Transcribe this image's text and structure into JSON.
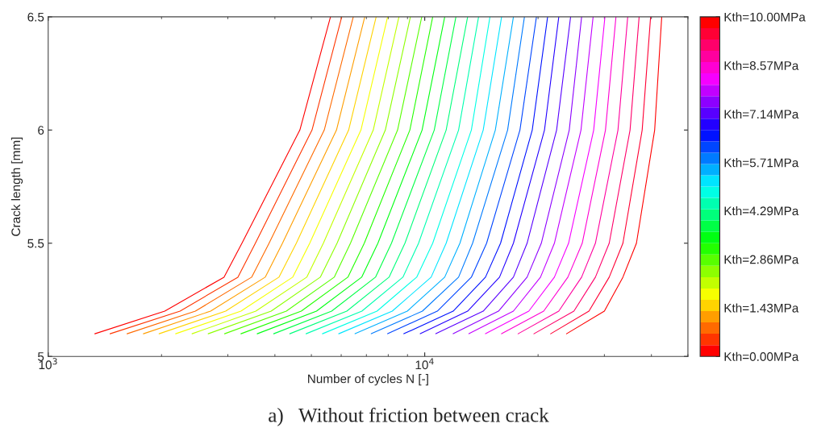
{
  "chart_data": {
    "type": "line",
    "xlabel": "Number of cycles N [-]",
    "ylabel": "Crack length [mm]",
    "log": "x",
    "xlim": [
      1000,
      50000
    ],
    "xticks": [
      {
        "value": 1000,
        "label": "10$^{3}$"
      },
      {
        "value": 10000,
        "label": "10$^{4}$"
      }
    ],
    "ylim": [
      5,
      6.5
    ],
    "yticks": [
      5,
      5.5,
      6,
      6.5
    ],
    "grid": false,
    "legend": false,
    "marker": "none",
    "line_style": "solid",
    "clim": [
      0,
      10
    ],
    "cticks": [
      {
        "value": 0,
        "label": "Kth=0.00MPa"
      },
      {
        "value": 1.43,
        "label": "Kth=1.43MPa"
      },
      {
        "value": 2.86,
        "label": "Kth=2.86MPa"
      },
      {
        "value": 4.29,
        "label": "Kth=4.29MPa"
      },
      {
        "value": 5.71,
        "label": "Kth=5.71MPa"
      },
      {
        "value": 7.14,
        "label": "Kth=7.14MPa"
      },
      {
        "value": 8.57,
        "label": "Kth=8.57MPa"
      },
      {
        "value": 10,
        "label": "Kth=10.00MPa"
      }
    ],
    "annotations": [
      "a)   Without friction between crack"
    ],
    "series": [
      {
        "color": "#ff0000",
        "x": [
          1330,
          2040,
          2930,
          3270,
          4660,
          5620
        ],
        "values": [
          5.1,
          5.2,
          5.35,
          5.5,
          6.0,
          6.5
        ]
      },
      {
        "color": "#ff3500",
        "x": [
          1460,
          2240,
          3190,
          3550,
          5020,
          6020
        ],
        "values": [
          5.1,
          5.2,
          5.35,
          5.5,
          6.0,
          6.5
        ]
      },
      {
        "color": "#ff6a00",
        "x": [
          1620,
          2460,
          3470,
          3860,
          5410,
          6460
        ],
        "values": [
          5.1,
          5.2,
          5.35,
          5.5,
          6.0,
          6.5
        ]
      },
      {
        "color": "#ff9e00",
        "x": [
          1790,
          2700,
          3770,
          4190,
          5830,
          6930
        ],
        "values": [
          5.1,
          5.2,
          5.35,
          5.5,
          6.0,
          6.5
        ]
      },
      {
        "color": "#ffd300",
        "x": [
          1970,
          2960,
          4100,
          4560,
          6280,
          7430
        ],
        "values": [
          5.1,
          5.2,
          5.35,
          5.5,
          6.0,
          6.5
        ]
      },
      {
        "color": "#f6ff00",
        "x": [
          2180,
          3250,
          4460,
          4950,
          6770,
          7970
        ],
        "values": [
          5.1,
          5.2,
          5.35,
          5.5,
          6.0,
          6.5
        ]
      },
      {
        "color": "#c2ff00",
        "x": [
          2410,
          3560,
          4860,
          5380,
          7300,
          8540
        ],
        "values": [
          5.1,
          5.2,
          5.35,
          5.5,
          6.0,
          6.5
        ]
      },
      {
        "color": "#8dff00",
        "x": [
          2660,
          3910,
          5280,
          5850,
          7860,
          9160
        ],
        "values": [
          5.1,
          5.2,
          5.35,
          5.5,
          6.0,
          6.5
        ]
      },
      {
        "color": "#58ff00",
        "x": [
          2940,
          4290,
          5750,
          6350,
          8470,
          9820
        ],
        "values": [
          5.1,
          5.2,
          5.35,
          5.5,
          6.0,
          6.5
        ]
      },
      {
        "color": "#23ff00",
        "x": [
          3250,
          4700,
          6250,
          6910,
          9130,
          10500
        ],
        "values": [
          5.1,
          5.2,
          5.35,
          5.5,
          6.0,
          6.5
        ]
      },
      {
        "color": "#00ff12",
        "x": [
          3590,
          5160,
          6800,
          7510,
          9840,
          11300
        ],
        "values": [
          5.1,
          5.2,
          5.35,
          5.5,
          6.0,
          6.5
        ]
      },
      {
        "color": "#00ff46",
        "x": [
          3970,
          5660,
          7400,
          8160,
          10600,
          12100
        ],
        "values": [
          5.1,
          5.2,
          5.35,
          5.5,
          6.0,
          6.5
        ]
      },
      {
        "color": "#00ff7b",
        "x": [
          4380,
          6210,
          8040,
          8860,
          11400,
          13000
        ],
        "values": [
          5.1,
          5.2,
          5.35,
          5.5,
          6.0,
          6.5
        ]
      },
      {
        "color": "#00ffb0",
        "x": [
          4840,
          6810,
          8750,
          9630,
          12300,
          13900
        ],
        "values": [
          5.1,
          5.2,
          5.35,
          5.5,
          6.0,
          6.5
        ]
      },
      {
        "color": "#00ffe5",
        "x": [
          5350,
          7470,
          9520,
          10500,
          13300,
          14900
        ],
        "values": [
          5.1,
          5.2,
          5.35,
          5.5,
          6.0,
          6.5
        ]
      },
      {
        "color": "#00e5ff",
        "x": [
          5910,
          8200,
          10400,
          11400,
          14300,
          16000
        ],
        "values": [
          5.1,
          5.2,
          5.35,
          5.5,
          6.0,
          6.5
        ]
      },
      {
        "color": "#00b0ff",
        "x": [
          6530,
          8990,
          11300,
          12400,
          15400,
          17200
        ],
        "values": [
          5.1,
          5.2,
          5.35,
          5.5,
          6.0,
          6.5
        ]
      },
      {
        "color": "#007bff",
        "x": [
          7210,
          9860,
          12300,
          13400,
          16600,
          18400
        ],
        "values": [
          5.1,
          5.2,
          5.35,
          5.5,
          6.0,
          6.5
        ]
      },
      {
        "color": "#0046ff",
        "x": [
          7970,
          10800,
          13300,
          14600,
          17900,
          19800
        ],
        "values": [
          5.1,
          5.2,
          5.35,
          5.5,
          6.0,
          6.5
        ]
      },
      {
        "color": "#0012ff",
        "x": [
          8800,
          11900,
          14500,
          15900,
          19300,
          21200
        ],
        "values": [
          5.1,
          5.2,
          5.35,
          5.5,
          6.0,
          6.5
        ]
      },
      {
        "color": "#2300ff",
        "x": [
          9730,
          13000,
          15800,
          17200,
          20800,
          22700
        ],
        "values": [
          5.1,
          5.2,
          5.35,
          5.5,
          6.0,
          6.5
        ]
      },
      {
        "color": "#5800ff",
        "x": [
          10700,
          14300,
          17200,
          18700,
          22400,
          24400
        ],
        "values": [
          5.1,
          5.2,
          5.35,
          5.5,
          6.0,
          6.5
        ]
      },
      {
        "color": "#8d00ff",
        "x": [
          11900,
          15700,
          18700,
          20400,
          24200,
          26100
        ],
        "values": [
          5.1,
          5.2,
          5.35,
          5.5,
          6.0,
          6.5
        ]
      },
      {
        "color": "#c200ff",
        "x": [
          13100,
          17200,
          20300,
          22100,
          26000,
          28000
        ],
        "values": [
          5.1,
          5.2,
          5.35,
          5.5,
          6.0,
          6.5
        ]
      },
      {
        "color": "#f600ff",
        "x": [
          14500,
          18900,
          22100,
          24100,
          28100,
          30100
        ],
        "values": [
          5.1,
          5.2,
          5.35,
          5.5,
          6.0,
          6.5
        ]
      },
      {
        "color": "#ff00d3",
        "x": [
          16000,
          20700,
          24000,
          26200,
          30200,
          32200
        ],
        "values": [
          5.1,
          5.2,
          5.35,
          5.5,
          6.0,
          6.5
        ]
      },
      {
        "color": "#ff009e",
        "x": [
          17700,
          22700,
          26100,
          28400,
          32600,
          34600
        ],
        "values": [
          5.1,
          5.2,
          5.35,
          5.5,
          6.0,
          6.5
        ]
      },
      {
        "color": "#ff006a",
        "x": [
          19500,
          24900,
          28400,
          30900,
          35100,
          37100
        ],
        "values": [
          5.1,
          5.2,
          5.35,
          5.5,
          6.0,
          6.5
        ]
      },
      {
        "color": "#ff0035",
        "x": [
          21600,
          27300,
          30900,
          33600,
          37800,
          39800
        ],
        "values": [
          5.1,
          5.2,
          5.35,
          5.5,
          6.0,
          6.5
        ]
      },
      {
        "color": "#ff0000",
        "x": [
          23800,
          30000,
          33600,
          36500,
          40800,
          42600
        ],
        "values": [
          5.1,
          5.2,
          5.35,
          5.5,
          6.0,
          6.5
        ]
      }
    ]
  }
}
